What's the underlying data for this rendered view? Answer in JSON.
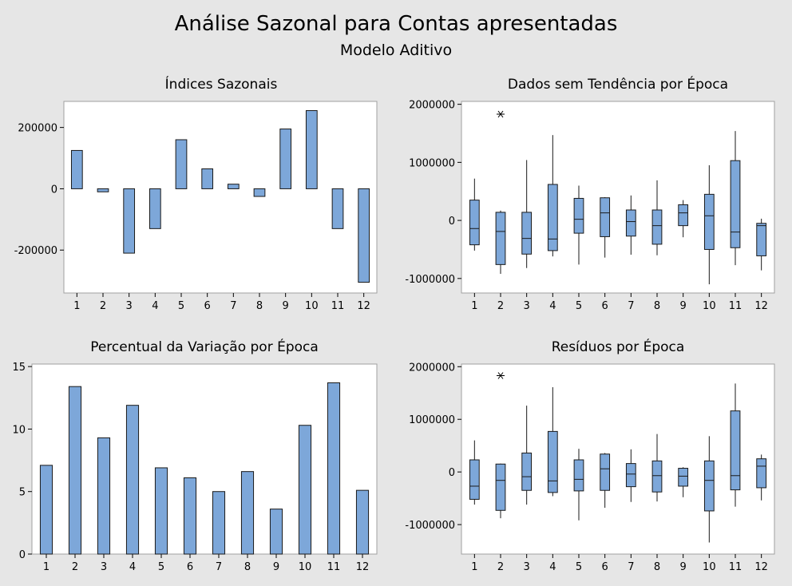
{
  "figure": {
    "title": "Análise Sazonal para Contas apresentadas",
    "subtitle": "Modelo Aditivo"
  },
  "chart_data": [
    {
      "type": "bar",
      "title": "Índices Sazonais",
      "xlabel": "",
      "ylabel": "",
      "categories": [
        "1",
        "2",
        "3",
        "4",
        "5",
        "6",
        "7",
        "8",
        "9",
        "10",
        "11",
        "12"
      ],
      "values": [
        125000,
        -10000,
        -210000,
        -130000,
        160000,
        65000,
        15000,
        -25000,
        195000,
        255000,
        -130000,
        -305000
      ],
      "ylim": [
        -340000,
        285000
      ],
      "yticks": [
        -200000,
        0,
        200000
      ],
      "ytick_labels": [
        "-200000",
        "0",
        "200000"
      ]
    },
    {
      "type": "boxplot",
      "title": "Dados sem Tendência por Época",
      "xlabel": "",
      "ylabel": "",
      "categories": [
        "1",
        "2",
        "3",
        "4",
        "5",
        "6",
        "7",
        "8",
        "9",
        "10",
        "11",
        "12"
      ],
      "boxes": [
        {
          "whislo": -520000,
          "q1": -420000,
          "med": -140000,
          "q3": 350000,
          "whishi": 720000
        },
        {
          "whislo": -920000,
          "q1": -760000,
          "med": -190000,
          "q3": 140000,
          "whishi": 170000
        },
        {
          "whislo": -820000,
          "q1": -580000,
          "med": -310000,
          "q3": 140000,
          "whishi": 1040000
        },
        {
          "whislo": -620000,
          "q1": -520000,
          "med": -320000,
          "q3": 620000,
          "whishi": 1470000
        },
        {
          "whislo": -760000,
          "q1": -220000,
          "med": 20000,
          "q3": 380000,
          "whishi": 600000
        },
        {
          "whislo": -640000,
          "q1": -280000,
          "med": 130000,
          "q3": 390000,
          "whishi": 400000
        },
        {
          "whislo": -590000,
          "q1": -270000,
          "med": -20000,
          "q3": 180000,
          "whishi": 430000
        },
        {
          "whislo": -600000,
          "q1": -410000,
          "med": -90000,
          "q3": 180000,
          "whishi": 690000
        },
        {
          "whislo": -290000,
          "q1": -90000,
          "med": 130000,
          "q3": 270000,
          "whishi": 350000
        },
        {
          "whislo": -1100000,
          "q1": -500000,
          "med": 80000,
          "q3": 450000,
          "whishi": 950000
        },
        {
          "whislo": -770000,
          "q1": -470000,
          "med": -200000,
          "q3": 1030000,
          "whishi": 1540000
        },
        {
          "whislo": -860000,
          "q1": -610000,
          "med": -90000,
          "q3": -50000,
          "whishi": 30000
        }
      ],
      "outliers": [
        {
          "x": "2",
          "y": 1830000
        }
      ],
      "ylim": [
        -1250000,
        2050000
      ],
      "yticks": [
        -1000000,
        0,
        1000000,
        2000000
      ],
      "ytick_labels": [
        "-1000000",
        "0",
        "1000000",
        "2000000"
      ]
    },
    {
      "type": "bar",
      "title": "Percentual da Variação por Época",
      "xlabel": "",
      "ylabel": "",
      "categories": [
        "1",
        "2",
        "3",
        "4",
        "5",
        "6",
        "7",
        "8",
        "9",
        "10",
        "11",
        "12"
      ],
      "values": [
        7.1,
        13.4,
        9.3,
        11.9,
        6.9,
        6.1,
        5.0,
        6.6,
        3.6,
        10.3,
        13.7,
        5.1
      ],
      "ylim": [
        0,
        15.2
      ],
      "yticks": [
        0,
        5,
        10,
        15
      ],
      "ytick_labels": [
        "0",
        "5",
        "10",
        "15"
      ]
    },
    {
      "type": "boxplot",
      "title": "Resíduos por Época",
      "xlabel": "",
      "ylabel": "",
      "categories": [
        "1",
        "2",
        "3",
        "4",
        "5",
        "6",
        "7",
        "8",
        "9",
        "10",
        "11",
        "12"
      ],
      "boxes": [
        {
          "whislo": -620000,
          "q1": -520000,
          "med": -270000,
          "q3": 230000,
          "whishi": 600000
        },
        {
          "whislo": -880000,
          "q1": -730000,
          "med": -160000,
          "q3": 150000,
          "whishi": 160000
        },
        {
          "whislo": -620000,
          "q1": -350000,
          "med": -90000,
          "q3": 360000,
          "whishi": 1260000
        },
        {
          "whislo": -460000,
          "q1": -390000,
          "med": -170000,
          "q3": 770000,
          "whishi": 1610000
        },
        {
          "whislo": -920000,
          "q1": -360000,
          "med": -140000,
          "q3": 230000,
          "whishi": 440000
        },
        {
          "whislo": -680000,
          "q1": -350000,
          "med": 60000,
          "q3": 340000,
          "whishi": 360000
        },
        {
          "whislo": -570000,
          "q1": -280000,
          "med": -40000,
          "q3": 160000,
          "whishi": 430000
        },
        {
          "whislo": -560000,
          "q1": -380000,
          "med": -70000,
          "q3": 210000,
          "whishi": 720000
        },
        {
          "whislo": -480000,
          "q1": -270000,
          "med": -80000,
          "q3": 70000,
          "whishi": 90000
        },
        {
          "whislo": -1340000,
          "q1": -740000,
          "med": -160000,
          "q3": 210000,
          "whishi": 680000
        },
        {
          "whislo": -660000,
          "q1": -340000,
          "med": -70000,
          "q3": 1160000,
          "whishi": 1680000
        },
        {
          "whislo": -540000,
          "q1": -300000,
          "med": 110000,
          "q3": 250000,
          "whishi": 330000
        }
      ],
      "outliers": [
        {
          "x": "2",
          "y": 1830000
        }
      ],
      "ylim": [
        -1560000,
        2050000
      ],
      "yticks": [
        -1000000,
        0,
        1000000,
        2000000
      ],
      "ytick_labels": [
        "-1000000",
        "0",
        "1000000",
        "2000000"
      ]
    }
  ],
  "colors": {
    "background": "#e6e6e6",
    "plot": "#ffffff",
    "fill": "#7da7d9",
    "stroke": "#1a1a1a"
  }
}
